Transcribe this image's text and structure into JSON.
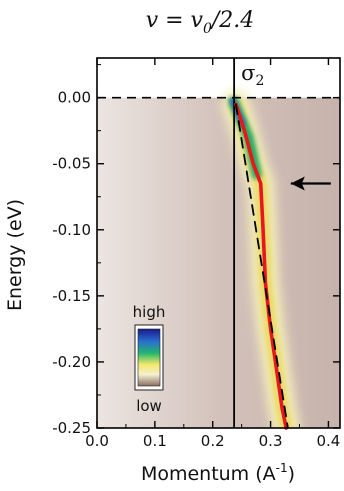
{
  "chart_data": {
    "type": "heatmap",
    "title": "v = v₀/2.4",
    "title_main": "v = v",
    "title_sub": "0",
    "title_tail": "/2.4",
    "panel_label": "σ",
    "panel_label_sub": "2",
    "xlabel": "Momentum (A",
    "xlabel_sup": "-1",
    "xlabel_tail": ")",
    "ylabel": "Energy (eV)",
    "xlim": [
      0.0,
      0.42
    ],
    "ylim": [
      -0.25,
      0.03
    ],
    "x_ticks": [
      0.0,
      0.1,
      0.2,
      0.3,
      0.4
    ],
    "x_tick_labels": [
      "0.0",
      "0.1",
      "0.2",
      "0.3",
      "0.4"
    ],
    "y_ticks": [
      0.0,
      -0.05,
      -0.1,
      -0.15,
      -0.2,
      -0.25
    ],
    "y_tick_labels": [
      "0.00",
      "-0.05",
      "-0.10",
      "-0.15",
      "-0.20",
      "-0.25"
    ],
    "fermi_level": 0.0,
    "vertical_line_x": 0.237,
    "colorbar": {
      "high_label": "high",
      "low_label": "low"
    },
    "series": [
      {
        "name": "",
        "style": "solid",
        "color": "#e8171b",
        "x": [
          0.24,
          0.255,
          0.27,
          0.283,
          0.287,
          0.291,
          0.3,
          0.31,
          0.32,
          0.327
        ],
        "y": [
          -0.005,
          -0.025,
          -0.05,
          -0.065,
          -0.1,
          -0.14,
          -0.175,
          -0.205,
          -0.235,
          -0.25
        ]
      },
      {
        "name": "",
        "style": "dashed",
        "color": "#000000",
        "x": [
          0.24,
          0.33
        ],
        "y": [
          -0.005,
          -0.25
        ]
      }
    ],
    "arrow_annotation": {
      "x": 0.335,
      "y": -0.065,
      "direction": "left"
    }
  }
}
